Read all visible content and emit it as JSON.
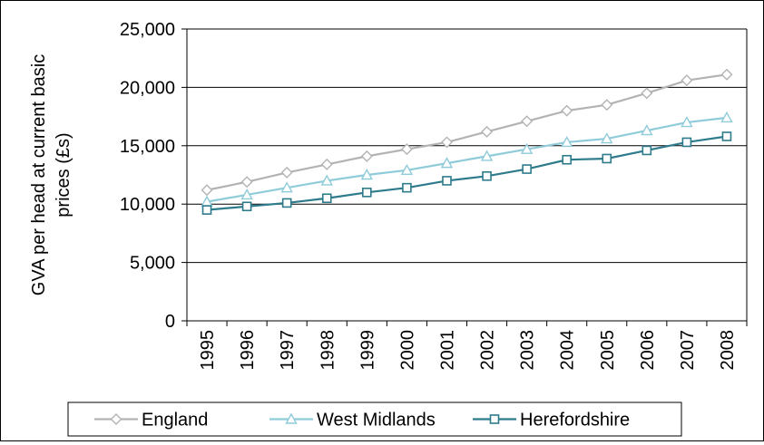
{
  "chart_data": {
    "type": "line",
    "title": "",
    "xlabel": "",
    "ylabel": "GVA per head at current basic prices (£s)",
    "ylabel_lines": [
      "GVA per head at current basic",
      "prices (£s)"
    ],
    "ylim": [
      0,
      25000
    ],
    "yticks": [
      0,
      5000,
      10000,
      15000,
      20000,
      25000
    ],
    "ytick_labels": [
      "0",
      "5,000",
      "10,000",
      "15,000",
      "20,000",
      "25,000"
    ],
    "grid": "horizontal",
    "legend_position": "bottom",
    "categories": [
      "1995",
      "1996",
      "1997",
      "1998",
      "1999",
      "2000",
      "2001",
      "2002",
      "2003",
      "2004",
      "2005",
      "2006",
      "2007",
      "2008"
    ],
    "series": [
      {
        "name": "England",
        "color": "#b3b3b3",
        "marker": "diamond",
        "values": [
          11200,
          11900,
          12700,
          13400,
          14100,
          14700,
          15300,
          16200,
          17100,
          18000,
          18500,
          19500,
          20600,
          21100
        ]
      },
      {
        "name": "West Midlands",
        "color": "#8fcbd9",
        "marker": "triangle",
        "values": [
          10200,
          10800,
          11400,
          12000,
          12500,
          12900,
          13500,
          14100,
          14700,
          15300,
          15600,
          16300,
          17000,
          17400
        ]
      },
      {
        "name": "Herefordshire",
        "color": "#2e7b8c",
        "marker": "square",
        "values": [
          9500,
          9800,
          10100,
          10500,
          11000,
          11400,
          12000,
          12400,
          13000,
          13800,
          13900,
          14600,
          15300,
          15800
        ]
      }
    ]
  }
}
